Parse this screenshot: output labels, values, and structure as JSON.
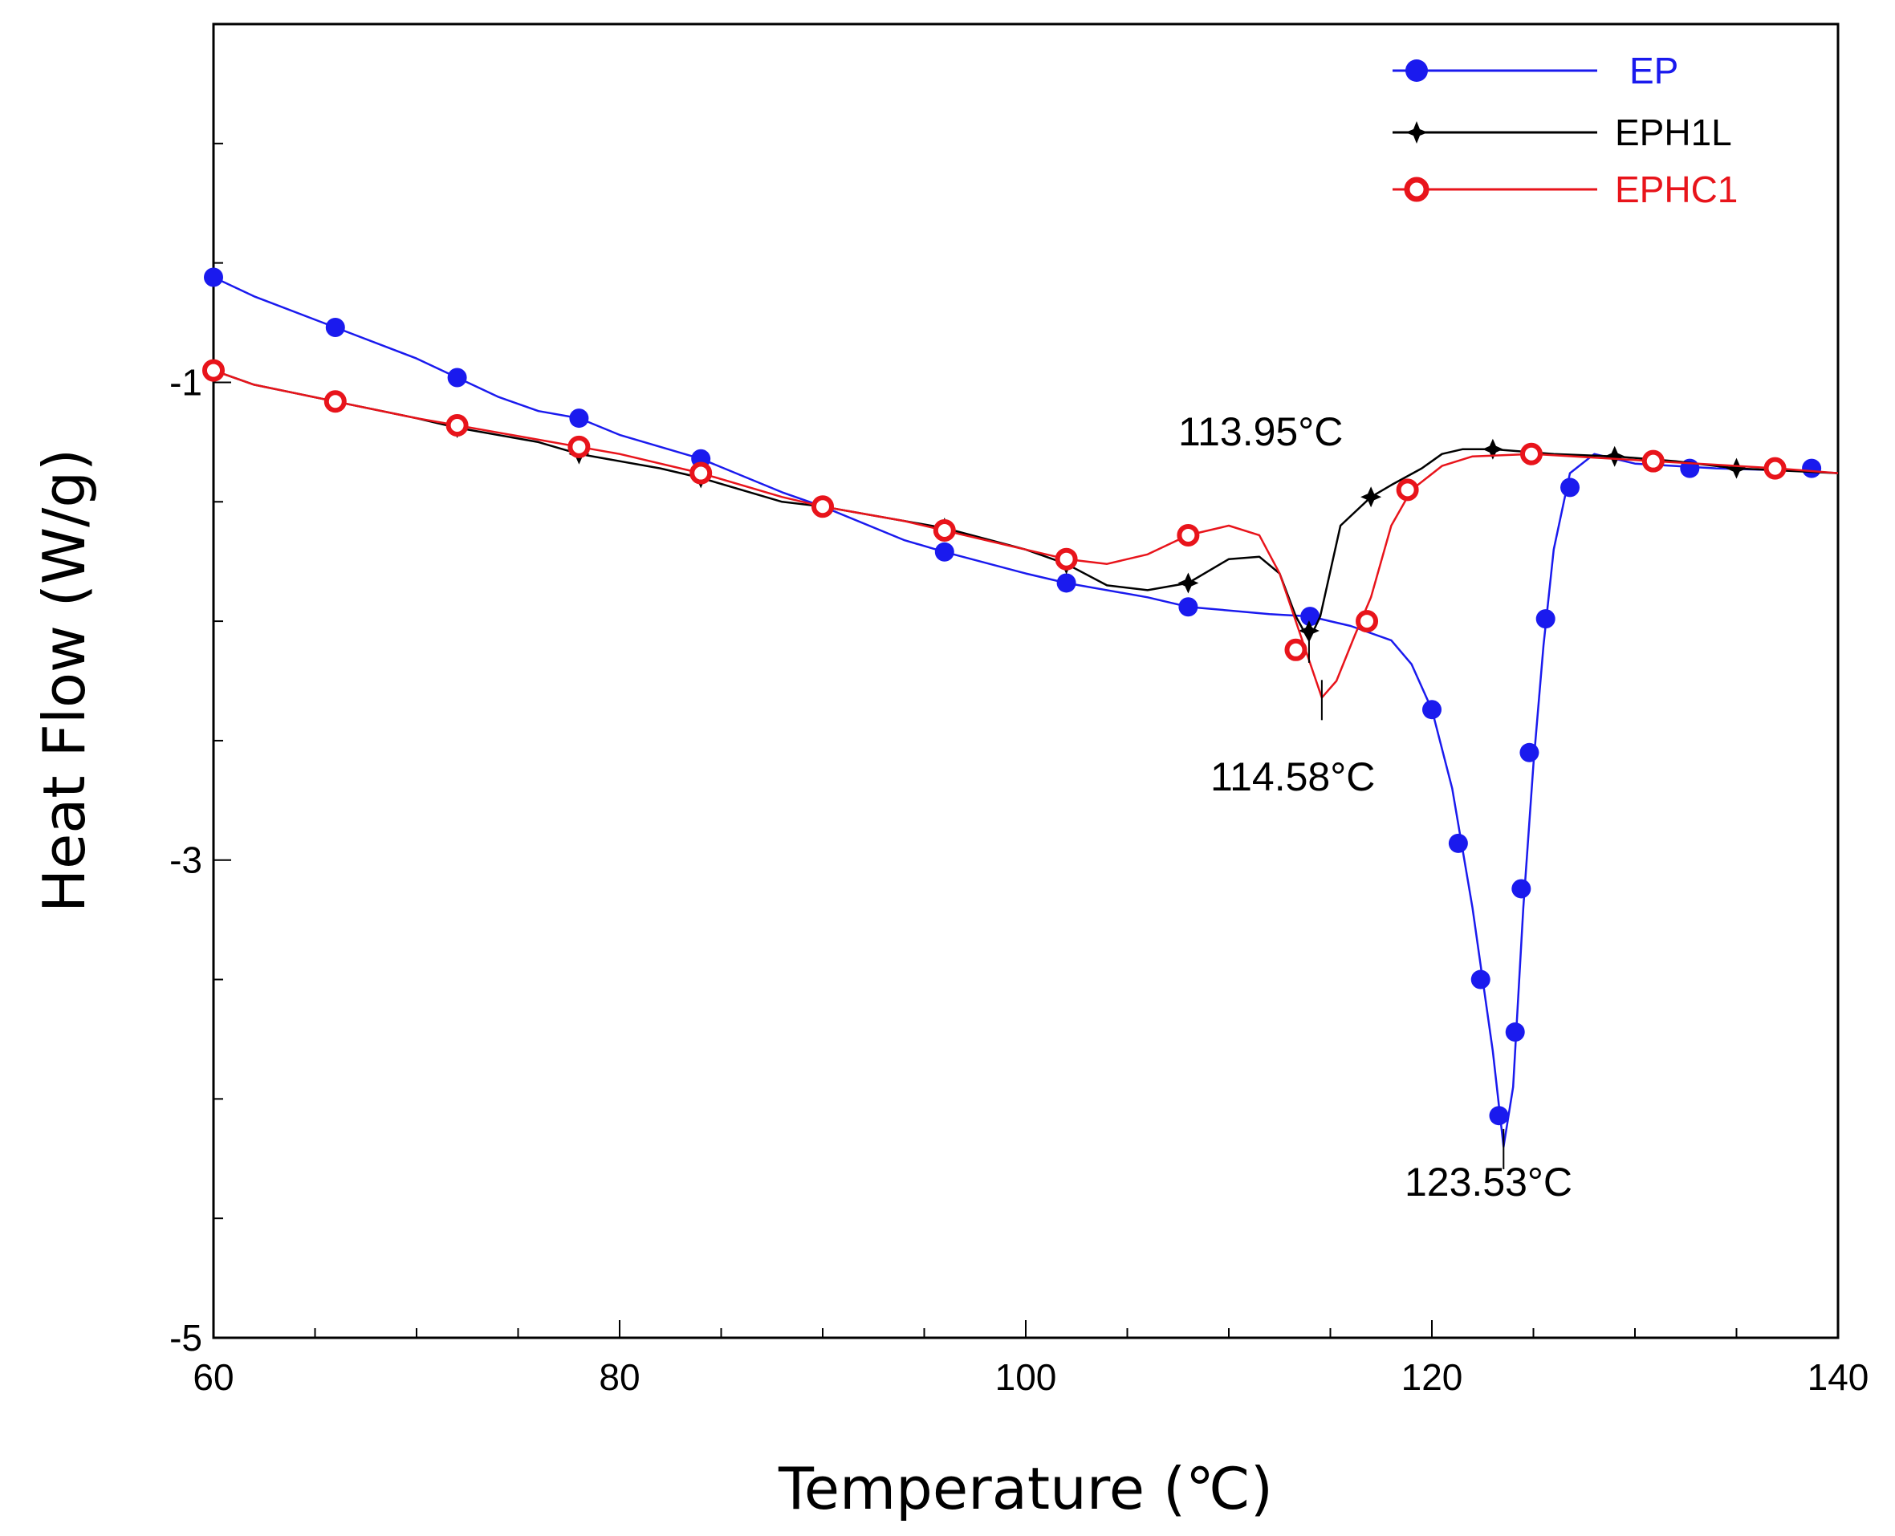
{
  "chart_data": {
    "type": "line",
    "title": "",
    "xlabel": "Temperature (℃)",
    "ylabel": "Heat Flow (W/g)",
    "xlim": [
      60,
      140
    ],
    "ylim": [
      -5,
      0.5
    ],
    "xticks": [
      60,
      80,
      100,
      120,
      140
    ],
    "yticks": [
      -1,
      -3,
      -5
    ],
    "xtick_labels": [
      "60",
      "80",
      "100",
      "120",
      "140"
    ],
    "ytick_labels": [
      "-1",
      "-3",
      "-5"
    ],
    "legend_position": "top-right",
    "series": [
      {
        "name": "EP",
        "color": "#1a1aee",
        "marker": "filled-circle",
        "line": [
          [
            60,
            -0.56
          ],
          [
            62,
            -0.64
          ],
          [
            66,
            -0.77
          ],
          [
            70,
            -0.9
          ],
          [
            72,
            -0.98
          ],
          [
            74,
            -1.06
          ],
          [
            76,
            -1.12
          ],
          [
            78,
            -1.15
          ],
          [
            80,
            -1.22
          ],
          [
            84,
            -1.32
          ],
          [
            88,
            -1.46
          ],
          [
            90,
            -1.52
          ],
          [
            94,
            -1.66
          ],
          [
            96,
            -1.71
          ],
          [
            100,
            -1.8
          ],
          [
            102,
            -1.84
          ],
          [
            106,
            -1.9
          ],
          [
            108,
            -1.94
          ],
          [
            112,
            -1.97
          ],
          [
            114,
            -1.98
          ],
          [
            115,
            -2.0
          ],
          [
            116,
            -2.02
          ],
          [
            118,
            -2.08
          ],
          [
            119,
            -2.18
          ],
          [
            120,
            -2.37
          ],
          [
            121,
            -2.7
          ],
          [
            122,
            -3.2
          ],
          [
            123,
            -3.8
          ],
          [
            123.53,
            -4.2
          ],
          [
            124,
            -3.95
          ],
          [
            124.5,
            -3.2
          ],
          [
            125,
            -2.6
          ],
          [
            125.5,
            -2.1
          ],
          [
            126,
            -1.7
          ],
          [
            126.8,
            -1.38
          ],
          [
            128,
            -1.3
          ],
          [
            130,
            -1.34
          ],
          [
            134,
            -1.36
          ],
          [
            138,
            -1.37
          ],
          [
            140,
            -1.38
          ]
        ],
        "markers": [
          [
            60,
            -0.56
          ],
          [
            66,
            -0.77
          ],
          [
            72,
            -0.98
          ],
          [
            78,
            -1.15
          ],
          [
            84,
            -1.32
          ],
          [
            90,
            -1.52
          ],
          [
            96,
            -1.71
          ],
          [
            102,
            -1.84
          ],
          [
            108,
            -1.94
          ],
          [
            114,
            -1.98
          ],
          [
            120,
            -2.37
          ],
          [
            121.3,
            -2.93
          ],
          [
            122.4,
            -3.5
          ],
          [
            123.3,
            -4.07
          ],
          [
            124.1,
            -3.72
          ],
          [
            124.4,
            -3.12
          ],
          [
            124.8,
            -2.55
          ],
          [
            125.6,
            -1.99
          ],
          [
            126.8,
            -1.44
          ],
          [
            132.7,
            -1.36
          ],
          [
            138.7,
            -1.36
          ]
        ]
      },
      {
        "name": "EPH1L",
        "color": "#000000",
        "marker": "star",
        "line": [
          [
            60,
            -0.95
          ],
          [
            62,
            -1.01
          ],
          [
            66,
            -1.08
          ],
          [
            70,
            -1.15
          ],
          [
            72,
            -1.19
          ],
          [
            76,
            -1.25
          ],
          [
            78,
            -1.3
          ],
          [
            82,
            -1.36
          ],
          [
            84,
            -1.4
          ],
          [
            88,
            -1.5
          ],
          [
            90,
            -1.52
          ],
          [
            94,
            -1.58
          ],
          [
            96,
            -1.61
          ],
          [
            100,
            -1.7
          ],
          [
            102,
            -1.76
          ],
          [
            104,
            -1.85
          ],
          [
            106,
            -1.87
          ],
          [
            108,
            -1.84
          ],
          [
            110,
            -1.74
          ],
          [
            111.5,
            -1.73
          ],
          [
            112.5,
            -1.8
          ],
          [
            113.3,
            -1.98
          ],
          [
            113.95,
            -2.08
          ],
          [
            114.5,
            -1.98
          ],
          [
            115.5,
            -1.6
          ],
          [
            117,
            -1.48
          ],
          [
            118,
            -1.43
          ],
          [
            119.5,
            -1.36
          ],
          [
            120.5,
            -1.3
          ],
          [
            121.5,
            -1.28
          ],
          [
            123,
            -1.28
          ],
          [
            126,
            -1.3
          ],
          [
            129,
            -1.31
          ],
          [
            132,
            -1.33
          ],
          [
            135,
            -1.36
          ],
          [
            140,
            -1.38
          ]
        ],
        "markers": [
          [
            72,
            -1.19
          ],
          [
            78,
            -1.3
          ],
          [
            84,
            -1.4
          ],
          [
            90,
            -1.52
          ],
          [
            96,
            -1.61
          ],
          [
            102,
            -1.76
          ],
          [
            108,
            -1.84
          ],
          [
            113.95,
            -2.04
          ],
          [
            117,
            -1.48
          ],
          [
            123,
            -1.28
          ],
          [
            129,
            -1.31
          ],
          [
            135,
            -1.36
          ]
        ]
      },
      {
        "name": "EPHC1",
        "color": "#e8141b",
        "marker": "open-circle",
        "line": [
          [
            60,
            -0.95
          ],
          [
            62,
            -1.01
          ],
          [
            66,
            -1.08
          ],
          [
            70,
            -1.15
          ],
          [
            72,
            -1.18
          ],
          [
            76,
            -1.24
          ],
          [
            78,
            -1.27
          ],
          [
            80,
            -1.3
          ],
          [
            84,
            -1.38
          ],
          [
            88,
            -1.48
          ],
          [
            90,
            -1.52
          ],
          [
            94,
            -1.58
          ],
          [
            96,
            -1.62
          ],
          [
            100,
            -1.7
          ],
          [
            102,
            -1.74
          ],
          [
            104,
            -1.76
          ],
          [
            106,
            -1.72
          ],
          [
            108,
            -1.64
          ],
          [
            110,
            -1.6
          ],
          [
            111.5,
            -1.64
          ],
          [
            112.5,
            -1.8
          ],
          [
            113.5,
            -2.05
          ],
          [
            114.58,
            -2.32
          ],
          [
            115.3,
            -2.25
          ],
          [
            116.2,
            -2.06
          ],
          [
            117,
            -1.9
          ],
          [
            118,
            -1.6
          ],
          [
            119,
            -1.45
          ],
          [
            120.5,
            -1.35
          ],
          [
            122,
            -1.31
          ],
          [
            125,
            -1.3
          ],
          [
            131,
            -1.33
          ],
          [
            137,
            -1.36
          ],
          [
            140,
            -1.38
          ]
        ],
        "markers": [
          [
            60,
            -0.95
          ],
          [
            66,
            -1.08
          ],
          [
            72,
            -1.18
          ],
          [
            78,
            -1.27
          ],
          [
            84,
            -1.38
          ],
          [
            90,
            -1.52
          ],
          [
            96,
            -1.62
          ],
          [
            102,
            -1.74
          ],
          [
            108,
            -1.64
          ],
          [
            113.3,
            -2.12
          ],
          [
            116.8,
            -2.0
          ],
          [
            118.8,
            -1.45
          ],
          [
            124.9,
            -1.3
          ],
          [
            130.9,
            -1.33
          ],
          [
            136.9,
            -1.36
          ]
        ]
      }
    ],
    "annotations": [
      {
        "text": "113.95°C",
        "x": 113.95,
        "y": -2.08
      },
      {
        "text": "114.58°C",
        "x": 114.58,
        "y": -2.32
      },
      {
        "text": "123.53°C",
        "x": 123.53,
        "y": -4.2
      }
    ]
  }
}
